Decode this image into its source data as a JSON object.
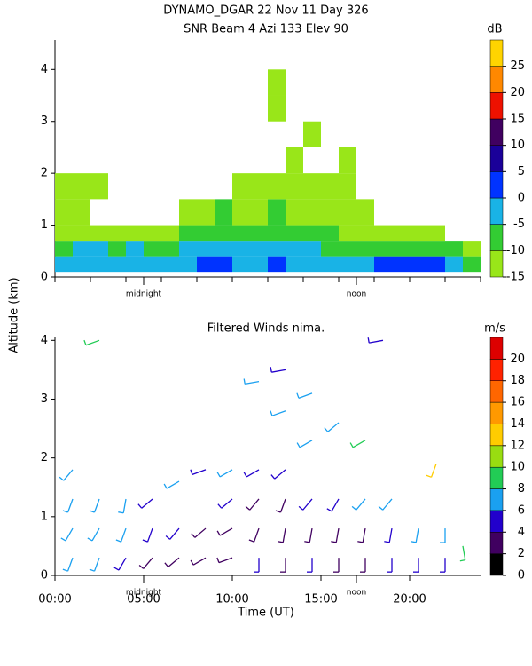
{
  "chart_data": [
    {
      "type": "heatmap",
      "title": "DYNAMO_DGAR  22 Nov 11 Day 326",
      "subtitle": "SNR Beam 4 Azi 133 Elev 90",
      "ylabel": "Altitude (km)",
      "x_edges": [
        0,
        1,
        2,
        3,
        4,
        5,
        6,
        7,
        8,
        9,
        10,
        11,
        12,
        13,
        14,
        15,
        16,
        17,
        18,
        19,
        20,
        21,
        22,
        23,
        24
      ],
      "y_edges": [
        0.1,
        0.4,
        0.7,
        1.0,
        1.5,
        2.0,
        2.5,
        3.0,
        3.5,
        4.0
      ],
      "z": [
        [
          -3,
          -2,
          -1,
          -2,
          -1,
          -2,
          -3,
          -2,
          0,
          2,
          -1,
          -2,
          0,
          -1,
          -2,
          -3,
          -4,
          -2,
          1,
          2,
          0,
          1,
          -3,
          -6
        ],
        [
          -6,
          -5,
          -5,
          -6,
          -5,
          -6,
          -6,
          -5,
          -3,
          -1,
          -4,
          -5,
          -3,
          -4,
          -5,
          -6,
          -7,
          -6,
          -7,
          -8,
          -8,
          -9,
          -10,
          -11
        ],
        [
          -11,
          -12,
          -11,
          -11,
          -11,
          -12,
          -12,
          -10,
          -8,
          -6,
          -9,
          -9,
          -7,
          -9,
          -10,
          -10,
          -11,
          -12,
          -12,
          -13,
          -13,
          -13,
          null,
          null
        ],
        [
          -12,
          -12,
          null,
          null,
          null,
          null,
          null,
          -13,
          -11,
          -9,
          -12,
          -11,
          -9,
          -11,
          -12,
          -12,
          -13,
          -13,
          null,
          null,
          null,
          null,
          null,
          null
        ],
        [
          -12,
          -12,
          -13,
          null,
          null,
          null,
          null,
          null,
          null,
          null,
          -13,
          -12,
          -11,
          -12,
          -13,
          -12,
          -12,
          null,
          null,
          null,
          null,
          null,
          null,
          null
        ],
        [
          null,
          null,
          null,
          null,
          null,
          null,
          null,
          null,
          null,
          null,
          null,
          null,
          null,
          -13,
          null,
          null,
          -12,
          null,
          null,
          null,
          null,
          null,
          null,
          null
        ],
        [
          null,
          null,
          null,
          null,
          null,
          null,
          null,
          null,
          null,
          null,
          null,
          null,
          null,
          null,
          -12,
          null,
          null,
          null,
          null,
          null,
          null,
          null,
          null,
          null
        ],
        [
          null,
          null,
          null,
          null,
          null,
          null,
          null,
          null,
          null,
          null,
          null,
          null,
          -13,
          null,
          null,
          null,
          null,
          null,
          null,
          null,
          null,
          null,
          null,
          null
        ],
        [
          null,
          null,
          null,
          null,
          null,
          null,
          null,
          null,
          null,
          null,
          null,
          null,
          -12,
          null,
          null,
          null,
          null,
          null,
          null,
          null,
          null,
          null,
          null,
          null
        ]
      ],
      "xlim": [
        0,
        24
      ],
      "ylim": [
        0,
        4.57
      ],
      "xticks": [
        0,
        2,
        4,
        6,
        8,
        10,
        12,
        14,
        16,
        18,
        20,
        22,
        24
      ],
      "yticks": [
        0,
        1,
        2,
        3,
        4
      ],
      "annotations": [
        {
          "x": 5,
          "text": "midnight"
        },
        {
          "x": 17,
          "text": "noon"
        }
      ],
      "colorbar": {
        "label": "dB",
        "levels": [
          -15,
          -10,
          -5,
          0,
          5,
          10,
          15,
          20,
          25,
          30
        ],
        "colors": [
          "#99e619",
          "#33cc33",
          "#19b3e6",
          "#0033ff",
          "#1a0099",
          "#400060",
          "#ee1100",
          "#ff8800",
          "#ffd400"
        ],
        "ticks": [
          -15,
          -10,
          -5,
          0,
          5,
          10,
          15,
          20,
          25
        ]
      }
    },
    {
      "type": "barbs",
      "title": "Filtered Winds nima.",
      "xlabel": "Time (UT)",
      "x": [
        1,
        1,
        1,
        1,
        2.5,
        2.5,
        2.5,
        2.5,
        4,
        4,
        4,
        5.5,
        5.5,
        5.5,
        7,
        7,
        7,
        8.5,
        8.5,
        8.5,
        10,
        10,
        10,
        10,
        11.5,
        11.5,
        11.5,
        11.5,
        11.5,
        13,
        13,
        13,
        13,
        13,
        13,
        14.5,
        14.5,
        14.5,
        14.5,
        14.5,
        16,
        16,
        16,
        16,
        17.5,
        17.5,
        17.5,
        17.5,
        18.5,
        19,
        19,
        19,
        20.5,
        20.5,
        21.5,
        22,
        22,
        23
      ],
      "y": [
        0.3,
        0.8,
        1.3,
        1.8,
        0.3,
        0.8,
        1.3,
        4.0,
        0.3,
        0.8,
        1.3,
        0.3,
        0.8,
        1.3,
        0.3,
        0.8,
        1.6,
        0.3,
        0.8,
        1.8,
        0.3,
        0.8,
        1.3,
        1.8,
        0.3,
        0.8,
        1.3,
        1.8,
        3.3,
        0.3,
        0.8,
        1.3,
        1.8,
        2.8,
        3.5,
        0.3,
        0.8,
        1.3,
        2.3,
        3.1,
        0.3,
        0.8,
        1.3,
        2.6,
        0.3,
        0.8,
        1.3,
        2.3,
        4.0,
        0.3,
        0.8,
        1.3,
        0.3,
        0.8,
        1.9,
        0.3,
        0.8,
        0.5
      ],
      "speed": [
        7,
        6,
        7,
        6,
        6,
        7,
        6,
        9,
        5,
        6,
        6,
        3,
        5,
        4,
        3,
        4,
        7,
        3,
        3,
        5,
        2,
        3,
        4,
        6,
        4,
        3,
        3,
        5,
        6,
        3,
        3,
        3,
        4,
        7,
        4,
        4,
        3,
        4,
        7,
        6,
        2,
        3,
        5,
        7,
        3,
        3,
        6,
        8,
        4,
        4,
        4,
        7,
        5,
        6,
        13,
        5,
        7,
        9
      ],
      "direction": [
        200,
        210,
        200,
        220,
        200,
        210,
        200,
        250,
        210,
        200,
        190,
        220,
        200,
        230,
        230,
        220,
        240,
        240,
        230,
        250,
        250,
        240,
        230,
        240,
        180,
        200,
        220,
        240,
        260,
        180,
        190,
        200,
        230,
        250,
        260,
        180,
        190,
        220,
        240,
        250,
        180,
        190,
        210,
        230,
        180,
        190,
        220,
        240,
        260,
        180,
        190,
        220,
        180,
        190,
        200,
        180,
        180,
        170
      ],
      "xlim": [
        0,
        24
      ],
      "ylim": [
        0,
        4.05
      ],
      "xticks": [
        {
          "value": 0,
          "label": "00:00"
        },
        {
          "value": 5,
          "label": "05:00"
        },
        {
          "value": 10,
          "label": "10:00"
        },
        {
          "value": 15,
          "label": "15:00"
        },
        {
          "value": 20,
          "label": "20:00"
        }
      ],
      "yticks": [
        0,
        1,
        2,
        3,
        4
      ],
      "annotations": [
        {
          "x": 5,
          "text": "midnight"
        },
        {
          "x": 17,
          "text": "noon"
        }
      ],
      "colorbar": {
        "label": "m/s",
        "levels": [
          0,
          2,
          4,
          6,
          8,
          10,
          12,
          14,
          16,
          18,
          20,
          22
        ],
        "colors": [
          "#000000",
          "#400060",
          "#2200cc",
          "#1aa0f0",
          "#22cc55",
          "#99dd11",
          "#ffcc00",
          "#ff9900",
          "#ff6600",
          "#ff2200",
          "#dd0000"
        ],
        "ticks": [
          0,
          2,
          4,
          6,
          8,
          10,
          12,
          14,
          16,
          18,
          20
        ]
      }
    }
  ]
}
